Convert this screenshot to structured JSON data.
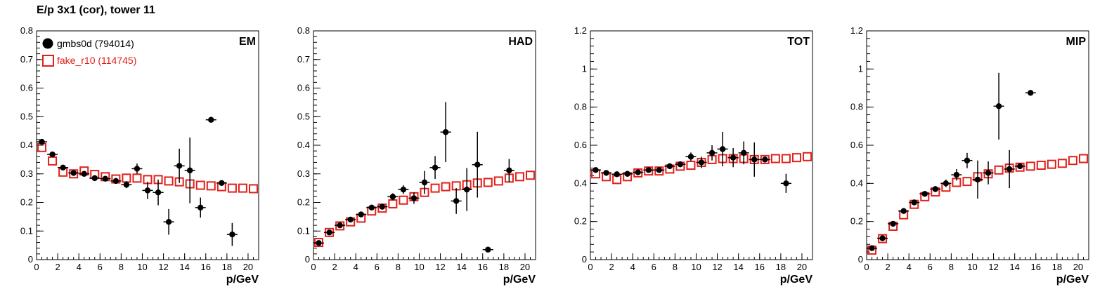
{
  "title": "E/p 3x1 (cor), tower 11",
  "colors": {
    "series1": "#000000",
    "series2": "#e0201b"
  },
  "legend": {
    "placement": "top-left",
    "entries": [
      "gmbs0d (794014)",
      "fake_r10 (114745)"
    ]
  },
  "chart_data": [
    {
      "type": "scatter",
      "panel_label": "EM",
      "xlabel": "p/GeV",
      "xlim": [
        0,
        21
      ],
      "ylim": [
        0,
        0.8
      ],
      "xticks": [
        0,
        2,
        4,
        6,
        8,
        10,
        12,
        14,
        16,
        18,
        20
      ],
      "yticks": [
        0,
        0.1,
        0.2,
        0.3,
        0.4,
        0.5,
        0.6,
        0.7,
        0.8
      ],
      "ytick_labels": [
        "0",
        "0.1",
        "0.2",
        "0.3",
        "0.4",
        "0.5",
        "0.6",
        "0.7",
        "0.8"
      ],
      "series": [
        {
          "name": "gmbs0d (794014)",
          "marker": "filled-circle",
          "x": [
            0.5,
            1.5,
            2.5,
            3.5,
            4.5,
            5.5,
            6.5,
            7.5,
            8.5,
            9.5,
            10.5,
            11.5,
            12.5,
            13.5,
            14.5,
            15.5,
            16.5,
            17.5,
            18.5
          ],
          "y": [
            0.412,
            0.368,
            0.322,
            0.303,
            0.3,
            0.285,
            0.283,
            0.275,
            0.262,
            0.318,
            0.242,
            0.235,
            0.132,
            0.328,
            0.312,
            0.182,
            0.489,
            0.268,
            0.088
          ],
          "yerr": [
            0.006,
            0.006,
            0.006,
            0.006,
            0.007,
            0.008,
            0.008,
            0.01,
            0.012,
            0.018,
            0.03,
            0.045,
            0.045,
            0.06,
            0.115,
            0.035,
            0.003,
            0.006,
            0.04
          ]
        },
        {
          "name": "fake_r10 (114745)",
          "marker": "open-square",
          "x": [
            0.5,
            1.5,
            2.5,
            3.5,
            4.5,
            5.5,
            6.5,
            7.5,
            8.5,
            9.5,
            10.5,
            11.5,
            12.5,
            13.5,
            14.5,
            15.5,
            16.5,
            17.5,
            18.5,
            19.5,
            20.5
          ],
          "y": [
            0.392,
            0.345,
            0.306,
            0.3,
            0.31,
            0.298,
            0.29,
            0.282,
            0.285,
            0.285,
            0.28,
            0.28,
            0.275,
            0.272,
            0.265,
            0.26,
            0.258,
            0.255,
            0.25,
            0.25,
            0.248
          ]
        }
      ]
    },
    {
      "type": "scatter",
      "panel_label": "HAD",
      "xlabel": "p/GeV",
      "xlim": [
        0,
        21
      ],
      "ylim": [
        0,
        0.8
      ],
      "xticks": [
        0,
        2,
        4,
        6,
        8,
        10,
        12,
        14,
        16,
        18,
        20
      ],
      "yticks": [
        0,
        0.1,
        0.2,
        0.3,
        0.4,
        0.5,
        0.6,
        0.7,
        0.8
      ],
      "ytick_labels": [
        "0",
        "0.1",
        "0.2",
        "0.3",
        "0.4",
        "0.5",
        "0.6",
        "0.7",
        "0.8"
      ],
      "series": [
        {
          "name": "gmbs0d (794014)",
          "marker": "filled-circle",
          "x": [
            0.5,
            1.5,
            2.5,
            3.5,
            4.5,
            5.5,
            6.5,
            7.5,
            8.5,
            9.5,
            10.5,
            11.5,
            12.5,
            13.5,
            14.5,
            15.5,
            16.5,
            18.5
          ],
          "y": [
            0.058,
            0.095,
            0.12,
            0.14,
            0.158,
            0.182,
            0.185,
            0.22,
            0.245,
            0.215,
            0.27,
            0.322,
            0.446,
            0.205,
            0.245,
            0.332,
            0.035,
            0.312
          ],
          "yerr": [
            0.005,
            0.005,
            0.006,
            0.007,
            0.008,
            0.009,
            0.01,
            0.012,
            0.015,
            0.02,
            0.04,
            0.04,
            0.105,
            0.045,
            0.075,
            0.115,
            0.003,
            0.04
          ]
        },
        {
          "name": "fake_r10 (114745)",
          "marker": "open-square",
          "x": [
            0.5,
            1.5,
            2.5,
            3.5,
            4.5,
            5.5,
            6.5,
            7.5,
            8.5,
            9.5,
            10.5,
            11.5,
            12.5,
            13.5,
            14.5,
            15.5,
            16.5,
            17.5,
            18.5,
            19.5,
            20.5
          ],
          "y": [
            0.06,
            0.095,
            0.118,
            0.132,
            0.145,
            0.17,
            0.18,
            0.195,
            0.208,
            0.22,
            0.235,
            0.25,
            0.255,
            0.258,
            0.262,
            0.268,
            0.27,
            0.275,
            0.285,
            0.29,
            0.295
          ]
        }
      ]
    },
    {
      "type": "scatter",
      "panel_label": "TOT",
      "xlabel": "p/GeV",
      "xlim": [
        0,
        21
      ],
      "ylim": [
        0,
        1.2
      ],
      "xticks": [
        0,
        2,
        4,
        6,
        8,
        10,
        12,
        14,
        16,
        18,
        20
      ],
      "yticks": [
        0,
        0.2,
        0.4,
        0.6,
        0.8,
        1.0,
        1.2
      ],
      "ytick_labels": [
        "0",
        "0.2",
        "0.4",
        "0.6",
        "0.8",
        "1",
        "1.2"
      ],
      "series": [
        {
          "name": "gmbs0d (794014)",
          "marker": "filled-circle",
          "x": [
            0.5,
            1.5,
            2.5,
            3.5,
            4.5,
            5.5,
            6.5,
            7.5,
            8.5,
            9.5,
            10.5,
            11.5,
            12.5,
            13.5,
            14.5,
            15.5,
            16.5,
            18.5
          ],
          "y": [
            0.47,
            0.455,
            0.448,
            0.45,
            0.458,
            0.47,
            0.47,
            0.49,
            0.5,
            0.54,
            0.51,
            0.56,
            0.58,
            0.535,
            0.56,
            0.525,
            0.525,
            0.4
          ],
          "yerr": [
            0.008,
            0.008,
            0.008,
            0.008,
            0.009,
            0.01,
            0.012,
            0.014,
            0.016,
            0.022,
            0.03,
            0.04,
            0.09,
            0.05,
            0.06,
            0.09,
            0.015,
            0.05
          ]
        },
        {
          "name": "fake_r10 (114745)",
          "marker": "open-square",
          "x": [
            0.5,
            1.5,
            2.5,
            3.5,
            4.5,
            5.5,
            6.5,
            7.5,
            8.5,
            9.5,
            10.5,
            11.5,
            12.5,
            13.5,
            14.5,
            15.5,
            16.5,
            17.5,
            18.5,
            19.5,
            20.5
          ],
          "y": [
            0.45,
            0.435,
            0.42,
            0.435,
            0.455,
            0.465,
            0.465,
            0.475,
            0.49,
            0.495,
            0.51,
            0.525,
            0.53,
            0.53,
            0.53,
            0.525,
            0.525,
            0.53,
            0.53,
            0.535,
            0.54
          ]
        }
      ]
    },
    {
      "type": "scatter",
      "panel_label": "MIP",
      "xlabel": "p/GeV",
      "xlim": [
        0,
        21
      ],
      "ylim": [
        0,
        1.2
      ],
      "xticks": [
        0,
        2,
        4,
        6,
        8,
        10,
        12,
        14,
        16,
        18,
        20
      ],
      "yticks": [
        0,
        0.2,
        0.4,
        0.6,
        0.8,
        1.0,
        1.2
      ],
      "ytick_labels": [
        "0",
        "0.2",
        "0.4",
        "0.6",
        "0.8",
        "1",
        "1.2"
      ],
      "series": [
        {
          "name": "gmbs0d (794014)",
          "marker": "filled-circle",
          "x": [
            0.5,
            1.5,
            2.5,
            3.5,
            4.5,
            5.5,
            6.5,
            7.5,
            8.5,
            9.5,
            10.5,
            11.5,
            12.5,
            13.5,
            14.5,
            15.5
          ],
          "y": [
            0.06,
            0.112,
            0.188,
            0.255,
            0.3,
            0.345,
            0.37,
            0.4,
            0.445,
            0.52,
            0.42,
            0.455,
            0.805,
            0.475,
            0.49,
            0.875
          ],
          "yerr": [
            0.006,
            0.007,
            0.008,
            0.01,
            0.012,
            0.014,
            0.016,
            0.02,
            0.03,
            0.04,
            0.1,
            0.06,
            0.175,
            0.1,
            0.015,
            0.005
          ]
        },
        {
          "name": "fake_r10 (114745)",
          "marker": "open-square",
          "x": [
            0.5,
            1.5,
            2.5,
            3.5,
            4.5,
            5.5,
            6.5,
            7.5,
            8.5,
            9.5,
            10.5,
            11.5,
            12.5,
            13.5,
            14.5,
            15.5,
            16.5,
            17.5,
            18.5,
            19.5,
            20.5
          ],
          "y": [
            0.05,
            0.11,
            0.175,
            0.235,
            0.29,
            0.33,
            0.355,
            0.38,
            0.405,
            0.41,
            0.435,
            0.45,
            0.47,
            0.48,
            0.485,
            0.49,
            0.495,
            0.5,
            0.505,
            0.52,
            0.53
          ]
        }
      ]
    }
  ]
}
